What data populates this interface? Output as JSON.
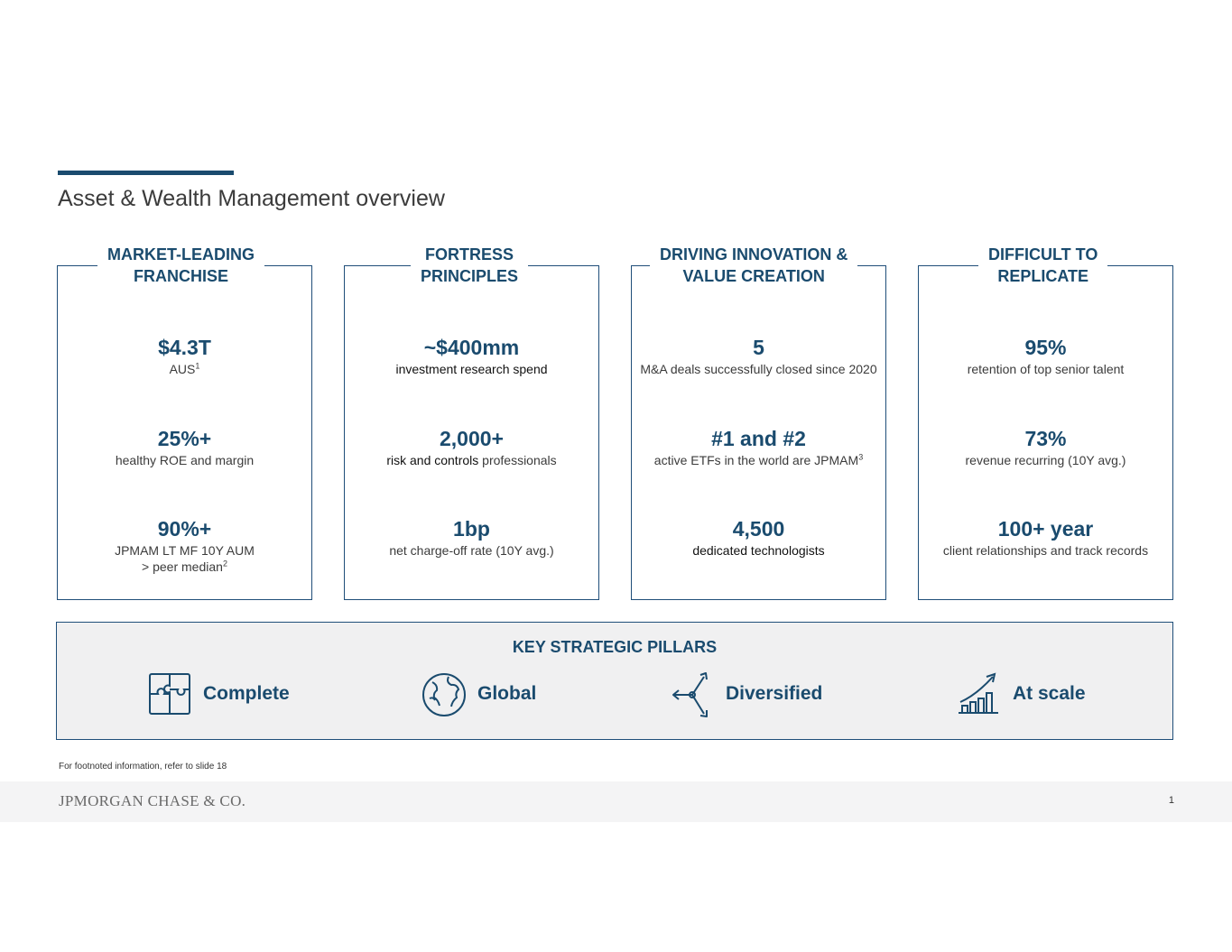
{
  "page": {
    "title": "Asset & Wealth Management overview"
  },
  "columns": [
    {
      "heading_line1": "MARKET-LEADING",
      "heading_line2": "FRANCHISE",
      "stats": [
        {
          "value": "$4.3T",
          "desc": "AUS",
          "sup": "1"
        },
        {
          "value": "25%+",
          "desc": "healthy ROE and margin"
        },
        {
          "value": "90%+",
          "desc": "JPMAM LT MF 10Y AUM",
          "desc2": "> peer median",
          "sup": "2"
        }
      ]
    },
    {
      "heading_line1": "FORTRESS",
      "heading_line2": "PRINCIPLES",
      "stats": [
        {
          "value": "~$400mm",
          "desc": "investment research spend"
        },
        {
          "value": "2,000+",
          "desc": "risk and controls",
          "desc_tail": " professionals"
        },
        {
          "value": "1bp",
          "desc": "net charge-off rate (10Y avg.)"
        }
      ]
    },
    {
      "heading_line1": "DRIVING INNOVATION &",
      "heading_line2": "VALUE CREATION",
      "stats": [
        {
          "value": "5",
          "desc": "M&A deals successfully closed since 2020"
        },
        {
          "value": "#1 and #2",
          "desc": "active ETFs in the world are JPMAM",
          "sup": "3"
        },
        {
          "value": "4,500",
          "desc": "dedicated technologists"
        }
      ]
    },
    {
      "heading_line1": "DIFFICULT TO",
      "heading_line2": "REPLICATE",
      "stats": [
        {
          "value": "95%",
          "desc": "retention of top senior talent"
        },
        {
          "value": "73%",
          "desc": "revenue recurring (10Y avg.)"
        },
        {
          "value": "100+ year",
          "desc": "client relationships and track records"
        }
      ]
    }
  ],
  "pillars": {
    "title": "KEY STRATEGIC PILLARS",
    "items": [
      {
        "label": "Complete",
        "icon": "puzzle-icon"
      },
      {
        "label": "Global",
        "icon": "globe-icon"
      },
      {
        "label": "Diversified",
        "icon": "diverging-arrows-icon"
      },
      {
        "label": "At scale",
        "icon": "growth-chart-icon"
      }
    ]
  },
  "footnote": "For footnoted information, refer to slide 18",
  "footer": {
    "logo": "JPMORGAN CHASE & CO.",
    "page_number": "1"
  },
  "colors": {
    "primary": "#1a4b6e",
    "border": "#1f4e79",
    "panel_bg": "#f0f0f1",
    "footer_bg": "#f4f4f5"
  }
}
